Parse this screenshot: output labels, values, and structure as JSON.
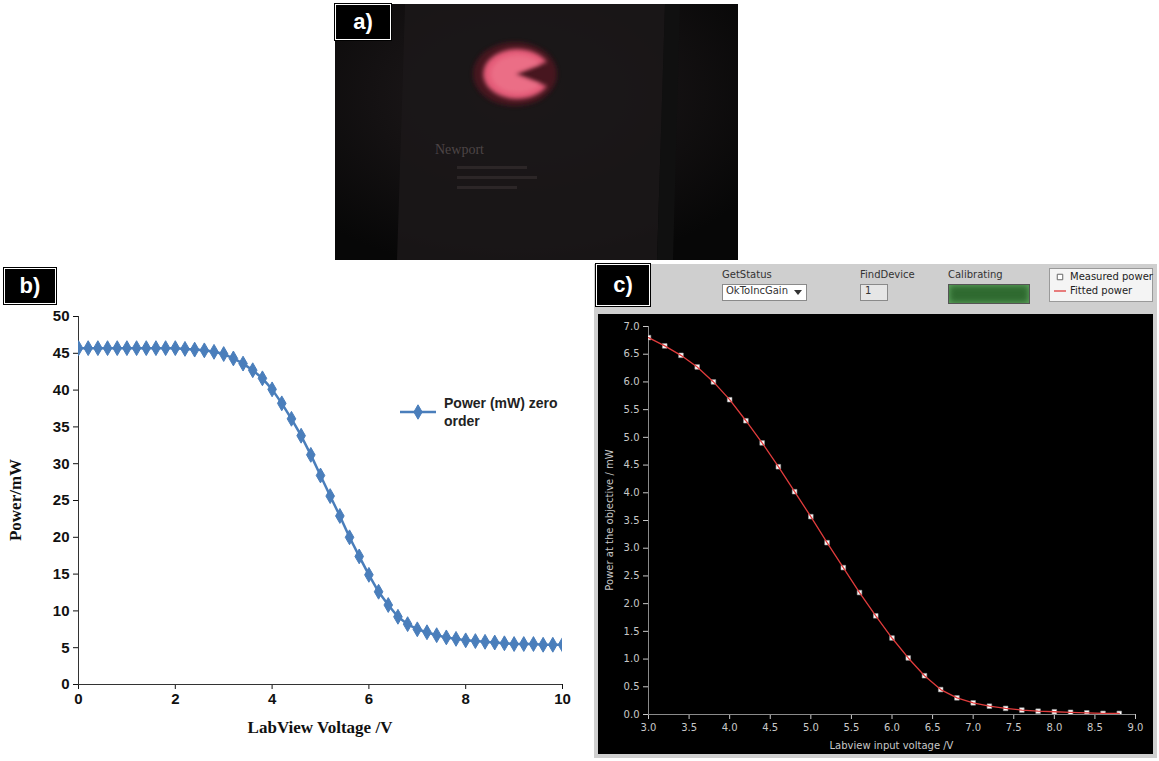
{
  "chart_data": [
    {
      "type": "photo",
      "panel_label": "a)",
      "annotations": [
        "Newport"
      ]
    },
    {
      "type": "line",
      "panel_label": "b)",
      "xlabel": "LabView Voltage /V",
      "ylabel": "Power/mW",
      "x": [
        0,
        0.2,
        0.4,
        0.6,
        0.8,
        1,
        1.2,
        1.4,
        1.6,
        1.8,
        2,
        2.2,
        2.4,
        2.6,
        2.8,
        3,
        3.2,
        3.4,
        3.6,
        3.8,
        4,
        4.2,
        4.4,
        4.6,
        4.8,
        5,
        5.2,
        5.4,
        5.6,
        5.8,
        6,
        6.2,
        6.4,
        6.6,
        6.8,
        7,
        7.2,
        7.4,
        7.6,
        7.8,
        8,
        8.2,
        8.4,
        8.6,
        8.8,
        9,
        9.2,
        9.4,
        9.6,
        9.8,
        10
      ],
      "series": [
        {
          "name": "Power (mW) zero order",
          "color": "#4a7ebb",
          "marker": "diamond",
          "line_style": "solid",
          "values": [
            45.7,
            45.7,
            45.7,
            45.7,
            45.7,
            45.7,
            45.7,
            45.7,
            45.7,
            45.7,
            45.7,
            45.6,
            45.5,
            45.4,
            45.2,
            44.9,
            44.3,
            43.6,
            42.7,
            41.6,
            40.1,
            38.2,
            36.1,
            33.8,
            31.2,
            28.4,
            25.6,
            22.9,
            20.0,
            17.4,
            14.9,
            12.6,
            10.8,
            9.2,
            8.2,
            7.5,
            7.1,
            6.7,
            6.4,
            6.2,
            6.0,
            5.9,
            5.8,
            5.7,
            5.6,
            5.5,
            5.5,
            5.5,
            5.4,
            5.4,
            5.4
          ]
        }
      ],
      "xlim": [
        0,
        10
      ],
      "xticks": [
        0,
        2,
        4,
        6,
        8,
        10
      ],
      "ylim": [
        0,
        50
      ],
      "yticks": [
        0,
        5,
        10,
        15,
        20,
        25,
        30,
        35,
        40,
        45,
        50
      ],
      "grid": false,
      "legend": "right"
    },
    {
      "type": "line",
      "panel_label": "c)",
      "controls": [
        {
          "label": "GetStatus",
          "value": "OkToIncGain"
        },
        {
          "label": "FindDevice",
          "value": "1"
        },
        {
          "label": "Calibrating"
        }
      ],
      "xlabel": "Labview input voltage /V",
      "ylabel": "Power at the objective / mW",
      "x": [
        3,
        3.2,
        3.4,
        3.6,
        3.8,
        4,
        4.2,
        4.4,
        4.6,
        4.8,
        5,
        5.2,
        5.4,
        5.6,
        5.8,
        6,
        6.2,
        6.4,
        6.6,
        6.8,
        7,
        7.2,
        7.4,
        7.6,
        7.8,
        8,
        8.2,
        8.4,
        8.6,
        8.8
      ],
      "series": [
        {
          "name": "Measured power",
          "type": "scatter",
          "marker": "square",
          "color": "#ffffff",
          "values": [
            6.8,
            6.65,
            6.48,
            6.27,
            6.0,
            5.68,
            5.3,
            4.9,
            4.47,
            4.02,
            3.57,
            3.1,
            2.65,
            2.2,
            1.78,
            1.38,
            1.02,
            0.7,
            0.45,
            0.3,
            0.21,
            0.15,
            0.11,
            0.08,
            0.06,
            0.05,
            0.04,
            0.03,
            0.02,
            0.02
          ]
        },
        {
          "name": "Fitted power",
          "type": "line",
          "line_style": "solid",
          "color": "#e03c3c",
          "values": [
            6.8,
            6.65,
            6.48,
            6.27,
            6.0,
            5.68,
            5.3,
            4.9,
            4.47,
            4.02,
            3.57,
            3.1,
            2.65,
            2.2,
            1.78,
            1.38,
            1.02,
            0.7,
            0.45,
            0.3,
            0.21,
            0.15,
            0.11,
            0.08,
            0.06,
            0.05,
            0.04,
            0.03,
            0.02,
            0.02
          ]
        }
      ],
      "xlim": [
        3,
        9
      ],
      "xticks": [
        {
          "value": 3,
          "label": "3.0"
        },
        3.5,
        {
          "value": 4,
          "label": "4.0"
        },
        4.5,
        {
          "value": 5,
          "label": "5.0"
        },
        5.5,
        {
          "value": 6,
          "label": "6.0"
        },
        6.5,
        {
          "value": 7,
          "label": "7.0"
        },
        7.5,
        {
          "value": 8,
          "label": "8.0"
        },
        8.5,
        {
          "value": 9,
          "label": "9.0"
        }
      ],
      "ylim": [
        0,
        7
      ],
      "yticks": [
        {
          "value": 0,
          "label": "0.0"
        },
        0.5,
        {
          "value": 1,
          "label": "1.0"
        },
        1.5,
        {
          "value": 2,
          "label": "2.0"
        },
        2.5,
        {
          "value": 3,
          "label": "3.0"
        },
        3.5,
        {
          "value": 4,
          "label": "4.0"
        },
        4.5,
        {
          "value": 5,
          "label": "5.0"
        },
        5.5,
        {
          "value": 6,
          "label": "6.0"
        },
        6.5,
        {
          "value": 7,
          "label": "7.0"
        }
      ],
      "grid": false,
      "legend": "top-right"
    }
  ]
}
